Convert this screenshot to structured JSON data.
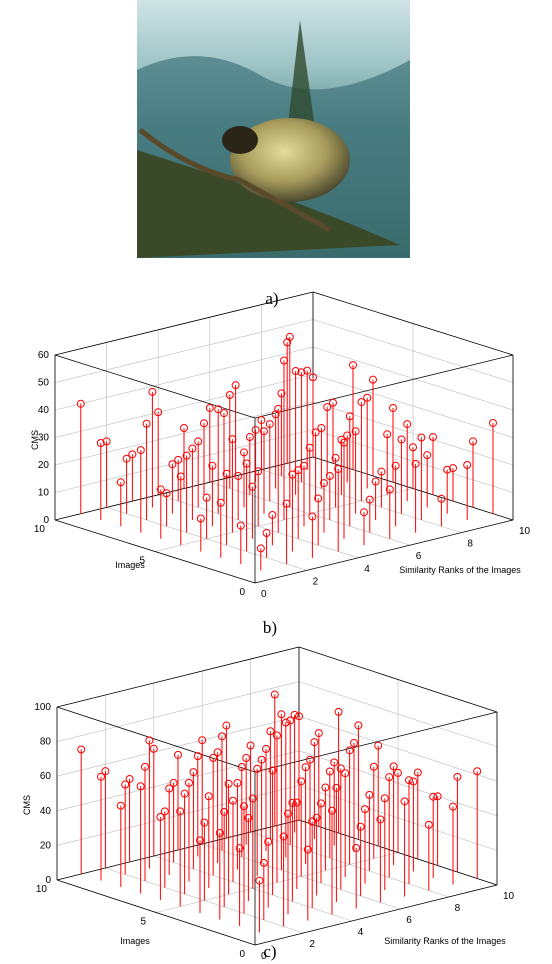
{
  "captions": [
    "a)",
    "b)",
    "c)"
  ],
  "chart_data": [
    {
      "type": "stem3",
      "z_label": "CMS",
      "y_label": "Images",
      "x_label": "Similarity Ranks of the Images",
      "color": "#ff0000",
      "x": [
        1,
        2,
        3,
        4,
        5,
        6,
        7,
        8,
        9,
        10
      ],
      "y": [
        1,
        2,
        3,
        4,
        5,
        6,
        7,
        8,
        9,
        10
      ],
      "values": [
        [
          8,
          22,
          15,
          30,
          12,
          18,
          25,
          10,
          20,
          33
        ],
        [
          14,
          9,
          28,
          17,
          35,
          12,
          22,
          30,
          16,
          24
        ],
        [
          20,
          32,
          11,
          25,
          18,
          40,
          14,
          27,
          19,
          12
        ],
        [
          12,
          26,
          19,
          45,
          22,
          16,
          30,
          13,
          28,
          21
        ],
        [
          25,
          15,
          34,
          20,
          58,
          24,
          18,
          36,
          22,
          15
        ],
        [
          18,
          28,
          22,
          16,
          30,
          62,
          25,
          20,
          33,
          27
        ],
        [
          30,
          12,
          26,
          38,
          20,
          28,
          45,
          22,
          17,
          35
        ],
        [
          16,
          35,
          18,
          24,
          32,
          21,
          27,
          40,
          25,
          38
        ],
        [
          28,
          20,
          42,
          15,
          26,
          34,
          19,
          30,
          36,
          22
        ],
        [
          40,
          24,
          17,
          30,
          22,
          27,
          33,
          18,
          44,
          29
        ]
      ],
      "xlim": [
        0,
        10
      ],
      "ylim": [
        0,
        10
      ],
      "zlim": [
        0,
        60
      ],
      "xticks": [
        0,
        2,
        4,
        6,
        8,
        10
      ],
      "yticks": [
        0,
        5,
        10
      ],
      "zticks": [
        0,
        10,
        20,
        30,
        40,
        50,
        60
      ],
      "grid": true
    },
    {
      "type": "stem3",
      "z_label": "CMS",
      "y_label": "Images",
      "x_label": "Similarity Ranks of the Images",
      "color": "#ff0000",
      "x": [
        1,
        2,
        3,
        4,
        5,
        6,
        7,
        8,
        9,
        10
      ],
      "y": [
        1,
        2,
        3,
        4,
        5,
        6,
        7,
        8,
        9,
        10
      ],
      "values": [
        [
          30,
          52,
          41,
          60,
          35,
          48,
          55,
          38,
          45,
          62
        ],
        [
          45,
          33,
          58,
          50,
          66,
          40,
          53,
          60,
          47,
          55
        ],
        [
          50,
          62,
          38,
          57,
          45,
          70,
          43,
          58,
          52,
          40
        ],
        [
          42,
          55,
          48,
          72,
          50,
          46,
          60,
          44,
          57,
          50
        ],
        [
          55,
          45,
          64,
          52,
          85,
          55,
          48,
          66,
          53,
          46
        ],
        [
          48,
          58,
          53,
          47,
          62,
          90,
          56,
          50,
          63,
          58
        ],
        [
          62,
          44,
          57,
          68,
          50,
          60,
          78,
          53,
          48,
          66
        ],
        [
          47,
          66,
          50,
          56,
          64,
          52,
          59,
          72,
          56,
          70
        ],
        [
          60,
          52,
          74,
          46,
          58,
          66,
          50,
          62,
          68,
          54
        ],
        [
          72,
          56,
          48,
          62,
          55,
          60,
          65,
          50,
          76,
          60
        ]
      ],
      "xlim": [
        0,
        10
      ],
      "ylim": [
        0,
        10
      ],
      "zlim": [
        0,
        100
      ],
      "xticks": [
        0,
        2,
        4,
        6,
        8,
        10
      ],
      "yticks": [
        0,
        5,
        10
      ],
      "zticks": [
        0,
        20,
        40,
        60,
        80,
        100
      ],
      "grid": true
    }
  ]
}
